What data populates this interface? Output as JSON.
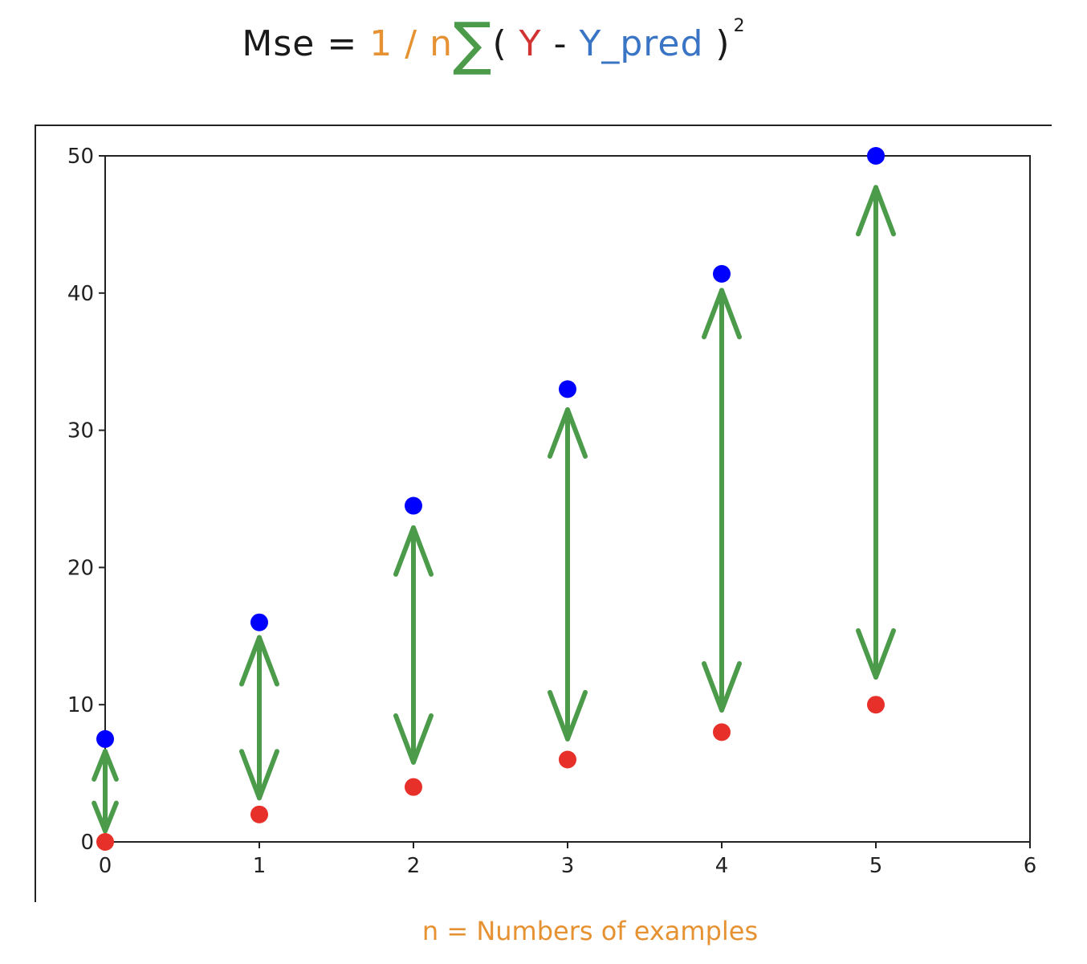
{
  "formula": {
    "lhs": "Mse",
    "eq": "=",
    "one": "1",
    "slash": "/",
    "n": "n",
    "sigma": "∑",
    "open_paren": "(",
    "y": "Y",
    "minus": "-",
    "y_pred": "Y_pred",
    "close_paren": ")",
    "exponent": "2"
  },
  "footnote": "n = Numbers of examples",
  "colors": {
    "lhs": "#1a1a1a",
    "n_term": "#e69232",
    "sigma": "#4b9b4b",
    "y": "#d13232",
    "y_pred": "#3a74c4",
    "pred_points": "#0000ff",
    "actual_points": "#e8302a",
    "arrows": "#4b9b4b",
    "axes": "#222222"
  },
  "chart_data": {
    "type": "scatter",
    "xlim": [
      0,
      6
    ],
    "ylim": [
      0,
      50
    ],
    "x_ticks": [
      "0",
      "1",
      "2",
      "3",
      "4",
      "5",
      "6"
    ],
    "y_ticks": [
      "0",
      "10",
      "20",
      "30",
      "40",
      "50"
    ],
    "x": [
      0,
      1,
      2,
      3,
      4,
      5
    ],
    "series": [
      {
        "color": "#0000ff",
        "values": [
          7.5,
          16,
          24.5,
          33,
          41.4,
          50
        ]
      },
      {
        "color": "#e8302a",
        "values": [
          0,
          2,
          4,
          6,
          8,
          10
        ]
      }
    ],
    "arrows": [
      {
        "x": 0,
        "from": 0.8,
        "to": 6.6
      },
      {
        "x": 1,
        "from": 3.2,
        "to": 14.9
      },
      {
        "x": 2,
        "from": 5.8,
        "to": 22.9
      },
      {
        "x": 3,
        "from": 7.5,
        "to": 31.5
      },
      {
        "x": 4,
        "from": 9.6,
        "to": 40.2
      },
      {
        "x": 5,
        "from": 12,
        "to": 47.7
      }
    ],
    "title": "",
    "xlabel": "",
    "ylabel": "",
    "grid": false,
    "legend": "none"
  }
}
